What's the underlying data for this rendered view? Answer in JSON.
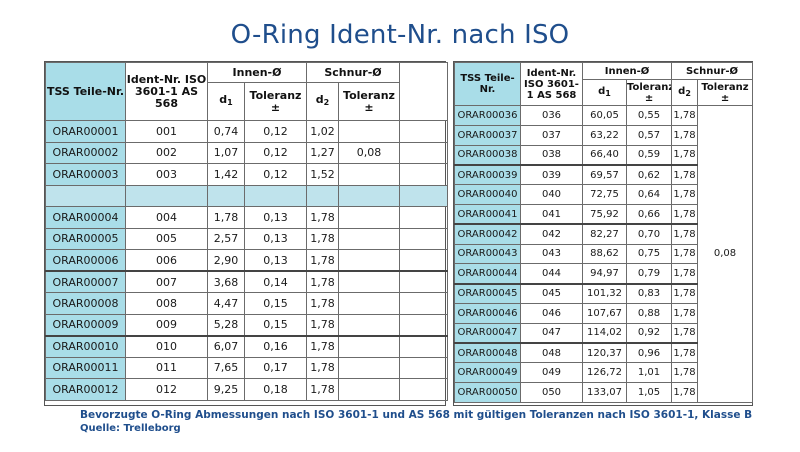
{
  "title": "O-Ring Ident-Nr. nach ISO",
  "headers": {
    "tss": "TSS Teile-Nr.",
    "ident": "Ident-Nr. ISO 3601-1 AS 568",
    "innen": "Innen-Ø",
    "schnur": "Schnur-Ø",
    "d1": "d",
    "d1_sub": "1",
    "d2": "d",
    "d2_sub": "2",
    "toleranz": "Toleranz",
    "pm": "±"
  },
  "left_table": {
    "groups": [
      {
        "rows": [
          {
            "tss": "ORAR00001",
            "ident": "001",
            "d1": "0,74",
            "tol1": "0,12",
            "d2": "1,02"
          },
          {
            "tss": "ORAR00002",
            "ident": "002",
            "d1": "1,07",
            "tol1": "0,12",
            "d2": "1,27"
          },
          {
            "tss": "ORAR00003",
            "ident": "003",
            "d1": "1,42",
            "tol1": "0,12",
            "d2": "1,52"
          }
        ]
      },
      {
        "rows": [
          {
            "tss": "ORAR00004",
            "ident": "004",
            "d1": "1,78",
            "tol1": "0,13",
            "d2": "1,78"
          },
          {
            "tss": "ORAR00005",
            "ident": "005",
            "d1": "2,57",
            "tol1": "0,13",
            "d2": "1,78"
          },
          {
            "tss": "ORAR00006",
            "ident": "006",
            "d1": "2,90",
            "tol1": "0,13",
            "d2": "1,78"
          }
        ]
      },
      {
        "rows": [
          {
            "tss": "ORAR00007",
            "ident": "007",
            "d1": "3,68",
            "tol1": "0,14",
            "d2": "1,78"
          },
          {
            "tss": "ORAR00008",
            "ident": "008",
            "d1": "4,47",
            "tol1": "0,15",
            "d2": "1,78"
          },
          {
            "tss": "ORAR00009",
            "ident": "009",
            "d1": "5,28",
            "tol1": "0,15",
            "d2": "1,78"
          }
        ]
      },
      {
        "rows": [
          {
            "tss": "ORAR00010",
            "ident": "010",
            "d1": "6,07",
            "tol1": "0,16",
            "d2": "1,78"
          },
          {
            "tss": "ORAR00011",
            "ident": "011",
            "d1": "7,65",
            "tol1": "0,17",
            "d2": "1,78"
          },
          {
            "tss": "ORAR00012",
            "ident": "012",
            "d1": "9,25",
            "tol1": "0,18",
            "d2": "1,78"
          }
        ]
      }
    ],
    "tol2_first": "0,08"
  },
  "right_table": {
    "groups": [
      {
        "rows": [
          {
            "tss": "ORAR00036",
            "ident": "036",
            "d1": "60,05",
            "tol1": "0,55",
            "d2": "1,78"
          },
          {
            "tss": "ORAR00037",
            "ident": "037",
            "d1": "63,22",
            "tol1": "0,57",
            "d2": "1,78"
          },
          {
            "tss": "ORAR00038",
            "ident": "038",
            "d1": "66,40",
            "tol1": "0,59",
            "d2": "1,78"
          }
        ]
      },
      {
        "rows": [
          {
            "tss": "ORAR00039",
            "ident": "039",
            "d1": "69,57",
            "tol1": "0,62",
            "d2": "1,78"
          },
          {
            "tss": "ORAR00040",
            "ident": "040",
            "d1": "72,75",
            "tol1": "0,64",
            "d2": "1,78"
          },
          {
            "tss": "ORAR00041",
            "ident": "041",
            "d1": "75,92",
            "tol1": "0,66",
            "d2": "1,78"
          }
        ]
      },
      {
        "rows": [
          {
            "tss": "ORAR00042",
            "ident": "042",
            "d1": "82,27",
            "tol1": "0,70",
            "d2": "1,78"
          },
          {
            "tss": "ORAR00043",
            "ident": "043",
            "d1": "88,62",
            "tol1": "0,75",
            "d2": "1,78"
          },
          {
            "tss": "ORAR00044",
            "ident": "044",
            "d1": "94,97",
            "tol1": "0,79",
            "d2": "1,78"
          }
        ]
      },
      {
        "rows": [
          {
            "tss": "ORAR00045",
            "ident": "045",
            "d1": "101,32",
            "tol1": "0,83",
            "d2": "1,78"
          },
          {
            "tss": "ORAR00046",
            "ident": "046",
            "d1": "107,67",
            "tol1": "0,88",
            "d2": "1,78"
          },
          {
            "tss": "ORAR00047",
            "ident": "047",
            "d1": "114,02",
            "tol1": "0,92",
            "d2": "1,78"
          }
        ]
      },
      {
        "rows": [
          {
            "tss": "ORAR00048",
            "ident": "048",
            "d1": "120,37",
            "tol1": "0,96",
            "d2": "1,78"
          },
          {
            "tss": "ORAR00049",
            "ident": "049",
            "d1": "126,72",
            "tol1": "1,01",
            "d2": "1,78"
          },
          {
            "tss": "ORAR00050",
            "ident": "050",
            "d1": "133,07",
            "tol1": "1,05",
            "d2": "1,78"
          }
        ]
      }
    ],
    "tol2": "0,08"
  },
  "caption": {
    "line1": "Bevorzugte O-Ring Abmessungen nach ISO 3601-1 und AS 568 mit gültigen Toleranzen nach ISO 3601-1, Klasse B",
    "line2": "Quelle: Trelleborg"
  },
  "colors": {
    "title_blue": "#1f4e8c",
    "id_cell_bg": "#a9dde8",
    "separator_bg": "#bfe3ec"
  }
}
